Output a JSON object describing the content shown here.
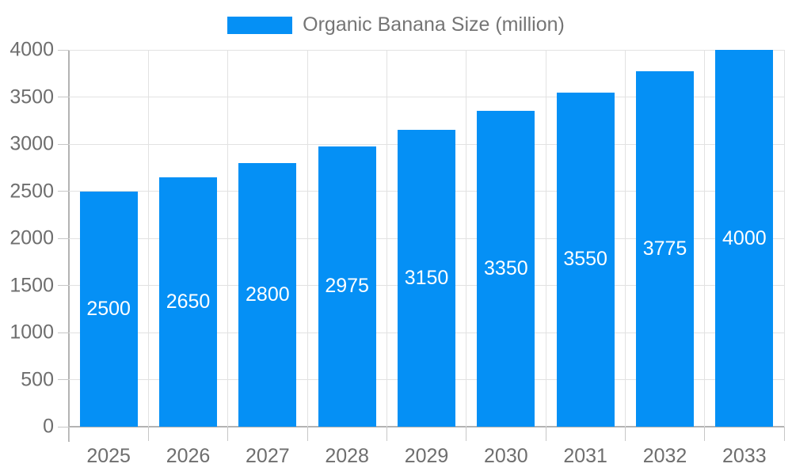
{
  "chart_data": {
    "type": "bar",
    "title": "Organic Banana Size (million)",
    "legend_label": "Organic Banana Size (million)",
    "legend_position": "top-center",
    "categories": [
      "2025",
      "2026",
      "2027",
      "2028",
      "2029",
      "2030",
      "2031",
      "2032",
      "2033"
    ],
    "series": [
      {
        "name": "Organic Banana Size (million)",
        "values": [
          2500,
          2650,
          2800,
          2975,
          3150,
          3350,
          3550,
          3775,
          4000
        ]
      }
    ],
    "xlabel": "",
    "ylabel": "",
    "ylim": [
      0,
      4000
    ],
    "y_tick_step": 500,
    "y_tick_labels": [
      "0",
      "500",
      "1000",
      "1500",
      "2000",
      "2500",
      "3000",
      "3500",
      "4000"
    ],
    "grid": true,
    "value_label_position": "inside-center",
    "colors": {
      "bar": "#0590f5",
      "bar_label_text": "#ffffff",
      "gridline": "#e2e2e2",
      "axis_line": "#b3b3b3",
      "tick": "#c7c7c7",
      "axis_label_text": "#6e6e6e",
      "legend_text": "#757575",
      "background": "#ffffff"
    }
  }
}
